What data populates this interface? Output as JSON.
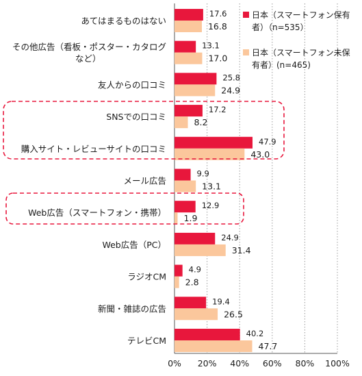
{
  "chart_data": {
    "type": "bar",
    "orientation": "horizontal",
    "categories": [
      "あてはまるものはない",
      "その他広告（看板・ポスター・カタログ など）",
      "友人からの口コミ",
      "SNSでの口コミ",
      "購入サイト・レビューサイトの口コミ",
      "メール広告",
      "Web広告（スマートフォン・携帯）",
      "Web広告（PC）",
      "ラジオCM",
      "新聞・雑誌の広告",
      "テレビCM"
    ],
    "category_lines": [
      [
        "あてはまるものはない"
      ],
      [
        "その他広告（看板・ポスター・カタログ",
        "など）"
      ],
      [
        "友人からの口コミ"
      ],
      [
        "SNSでの口コミ"
      ],
      [
        "購入サイト・レビューサイトの口コミ"
      ],
      [
        "メール広告"
      ],
      [
        "Web広告（スマートフォン・携帯）"
      ],
      [
        "Web広告（PC）"
      ],
      [
        "ラジオCM"
      ],
      [
        "新聞・雑誌の広告"
      ],
      [
        "テレビCM"
      ]
    ],
    "series": [
      {
        "name": "日本（スマートフォン保有者）（n=535）",
        "legend_lines": [
          "日本（スマートフォン保有",
          "者）（n=535）"
        ],
        "color": "#e8173c",
        "values": [
          17.6,
          13.1,
          25.8,
          17.2,
          47.9,
          9.9,
          12.9,
          24.9,
          4.9,
          19.4,
          40.2
        ]
      },
      {
        "name": "日本（スマートフォン未保有者）(n=465)",
        "legend_lines": [
          "日本（スマートフォン未保",
          "有者）(n=465)"
        ],
        "color": "#fbc79c",
        "values": [
          16.8,
          17.0,
          24.9,
          8.2,
          43.0,
          13.1,
          1.9,
          31.4,
          2.8,
          26.5,
          47.7
        ]
      }
    ],
    "xlim": [
      0,
      100
    ],
    "xticks": [
      "0%",
      "20%",
      "40%",
      "60%",
      "80%",
      "100%"
    ],
    "grid": "vertical dashed",
    "legend_position": "top-right",
    "highlight_boxes_color": "#e8173c"
  }
}
